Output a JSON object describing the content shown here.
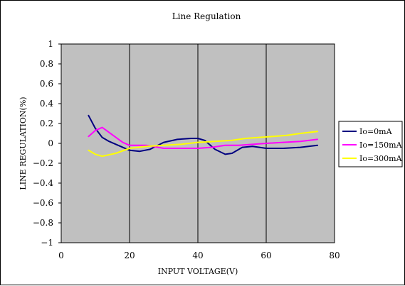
{
  "chart_data": {
    "type": "line",
    "title": "Line Regulation",
    "xlabel": "INPUT VOLTAGE(V)",
    "ylabel": "LINE REGULATION(%)",
    "xlim": [
      0,
      80
    ],
    "ylim": [
      -1,
      1
    ],
    "x_ticks": [
      "0",
      "20",
      "40",
      "60",
      "80"
    ],
    "y_ticks": [
      "1",
      "0.8",
      "0.6",
      "0.4",
      "0.2",
      "0",
      "-0.2",
      "-0.4",
      "-0.6",
      "-0.8",
      "-1"
    ],
    "x_tick_values": [
      0,
      20,
      40,
      60,
      80
    ],
    "y_tick_values": [
      1,
      0.8,
      0.6,
      0.4,
      0.2,
      0,
      -0.2,
      -0.4,
      -0.6,
      -0.8,
      -1
    ],
    "grid": true,
    "plot_background": "#c0c0c0",
    "legend_position": "right",
    "series": [
      {
        "name": "Io=0mA",
        "color": "#000080",
        "points": [
          [
            8,
            0.28
          ],
          [
            10,
            0.15
          ],
          [
            12,
            0.06
          ],
          [
            14,
            0.02
          ],
          [
            18,
            -0.04
          ],
          [
            20,
            -0.07
          ],
          [
            23,
            -0.08
          ],
          [
            26,
            -0.06
          ],
          [
            30,
            0.01
          ],
          [
            34,
            0.04
          ],
          [
            38,
            0.05
          ],
          [
            40,
            0.05
          ],
          [
            42,
            0.03
          ],
          [
            45,
            -0.06
          ],
          [
            48,
            -0.11
          ],
          [
            50,
            -0.1
          ],
          [
            53,
            -0.04
          ],
          [
            56,
            -0.03
          ],
          [
            60,
            -0.05
          ],
          [
            65,
            -0.05
          ],
          [
            70,
            -0.04
          ],
          [
            75,
            -0.02
          ]
        ]
      },
      {
        "name": "Io=150mA",
        "color": "#ff00ff",
        "points": [
          [
            8,
            0.07
          ],
          [
            10,
            0.13
          ],
          [
            12,
            0.16
          ],
          [
            14,
            0.11
          ],
          [
            18,
            0.01
          ],
          [
            20,
            -0.02
          ],
          [
            25,
            -0.02
          ],
          [
            30,
            -0.05
          ],
          [
            35,
            -0.05
          ],
          [
            40,
            -0.05
          ],
          [
            44,
            -0.04
          ],
          [
            48,
            -0.02
          ],
          [
            52,
            -0.02
          ],
          [
            56,
            -0.01
          ],
          [
            60,
            0
          ],
          [
            65,
            0.01
          ],
          [
            70,
            0.02
          ],
          [
            75,
            0.04
          ]
        ]
      },
      {
        "name": "Io=300mA",
        "color": "#ffff00",
        "points": [
          [
            8,
            -0.07
          ],
          [
            10,
            -0.11
          ],
          [
            12,
            -0.13
          ],
          [
            16,
            -0.1
          ],
          [
            20,
            -0.05
          ],
          [
            25,
            -0.03
          ],
          [
            30,
            -0.02
          ],
          [
            35,
            -0.01
          ],
          [
            40,
            0.01
          ],
          [
            45,
            0.02
          ],
          [
            50,
            0.03
          ],
          [
            54,
            0.05
          ],
          [
            58,
            0.06
          ],
          [
            62,
            0.07
          ],
          [
            66,
            0.08
          ],
          [
            70,
            0.1
          ],
          [
            75,
            0.12
          ]
        ]
      }
    ]
  }
}
